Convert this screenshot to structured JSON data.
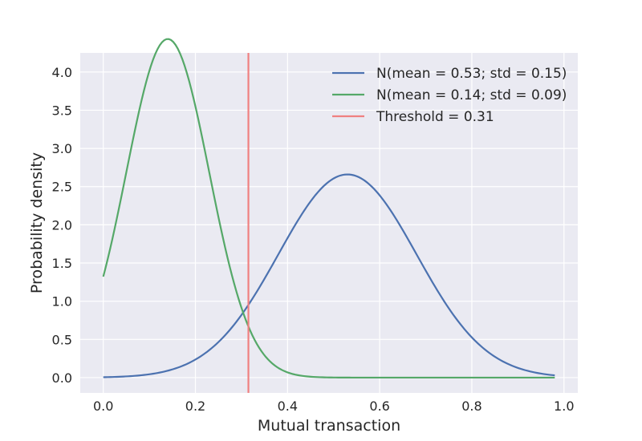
{
  "chart_data": {
    "type": "line",
    "title": "",
    "xlabel": "Mutual transaction",
    "ylabel": "Probability density",
    "xlim": [
      -0.05,
      1.03
    ],
    "ylim": [
      -0.2,
      4.25
    ],
    "xticks": [
      0.0,
      0.2,
      0.4,
      0.6,
      0.8,
      1.0
    ],
    "xtick_labels": [
      "0.0",
      "0.2",
      "0.4",
      "0.6",
      "0.8",
      "1.0"
    ],
    "yticks": [
      0.0,
      0.5,
      1.0,
      1.5,
      2.0,
      2.5,
      3.0,
      3.5,
      4.0
    ],
    "ytick_labels": [
      "0.0",
      "0.5",
      "1.0",
      "1.5",
      "2.0",
      "2.5",
      "3.0",
      "3.5",
      "4.0"
    ],
    "grid": true,
    "background": "#eaeaf2",
    "legend_position": "top-right",
    "x_range": [
      0.0,
      0.98
    ],
    "series": [
      {
        "name": "N(mean = 0.53; std = 0.15)",
        "kind": "normal-pdf",
        "mean": 0.53,
        "std": 0.15,
        "color": "#4c72b0"
      },
      {
        "name": "N(mean = 0.14; std = 0.09)",
        "kind": "normal-pdf",
        "mean": 0.14,
        "std": 0.09,
        "color": "#55a868"
      },
      {
        "name": "Threshold = 0.31",
        "kind": "vline",
        "x": 0.315,
        "color": "#f08080"
      }
    ]
  }
}
